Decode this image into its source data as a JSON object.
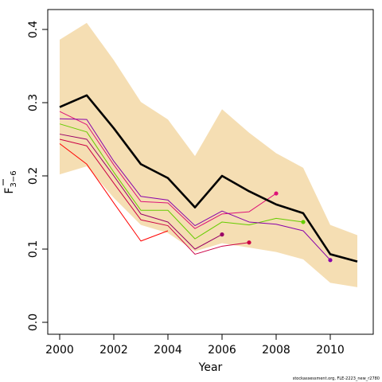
{
  "chart_data": {
    "type": "line",
    "xlabel": "Year",
    "ylabel": {
      "main": "F",
      "subscript": "3−6"
    },
    "xlim": [
      2000,
      2011
    ],
    "ylim": [
      0,
      0.42
    ],
    "x_ticks": [
      "2000",
      "2002",
      "2004",
      "2006",
      "2008",
      "2010"
    ],
    "y_ticks": [
      "0.0",
      "0.1",
      "0.2",
      "0.3",
      "0.4"
    ],
    "credit": "stockassessment.org, FLE-2223_new_r2780",
    "band": {
      "color": "#f5deb3",
      "x": [
        2000,
        2001,
        2002,
        2003,
        2004,
        2005,
        2006,
        2007,
        2008,
        2009,
        2010,
        2011
      ],
      "lower": [
        0.202,
        0.213,
        0.17,
        0.133,
        0.122,
        0.097,
        0.108,
        0.102,
        0.096,
        0.086,
        0.054,
        0.048
      ],
      "upper": [
        0.386,
        0.409,
        0.358,
        0.301,
        0.277,
        0.227,
        0.291,
        0.259,
        0.231,
        0.211,
        0.133,
        0.119
      ]
    },
    "series": [
      {
        "color": "#000000",
        "width": 2.6,
        "end_marker": false,
        "x": [
          2000,
          2001,
          2002,
          2003,
          2004,
          2005,
          2006,
          2007,
          2008,
          2009,
          2010,
          2011
        ],
        "values": [
          0.294,
          0.31,
          0.265,
          0.216,
          0.197,
          0.157,
          0.2,
          0.179,
          0.161,
          0.149,
          0.093,
          0.083
        ]
      },
      {
        "color": "#ff0000",
        "width": 1,
        "end_marker": false,
        "x": [
          2000,
          2001,
          2002,
          2003,
          2004
        ],
        "values": [
          0.244,
          0.216,
          0.163,
          0.111,
          0.125
        ]
      },
      {
        "color": "#cc0044",
        "width": 1,
        "end_marker": true,
        "x": [
          2000,
          2001,
          2002,
          2003,
          2004,
          2005,
          2006,
          2007
        ],
        "values": [
          0.25,
          0.241,
          0.19,
          0.14,
          0.132,
          0.093,
          0.104,
          0.109
        ]
      },
      {
        "color": "#990066",
        "width": 1,
        "end_marker": true,
        "x": [
          2000,
          2001,
          2002,
          2003,
          2004,
          2005,
          2006
        ],
        "values": [
          0.257,
          0.25,
          0.2,
          0.148,
          0.137,
          0.1,
          0.12
        ]
      },
      {
        "color": "#dd1177",
        "width": 1,
        "end_marker": true,
        "x": [
          2000,
          2001,
          2002,
          2003,
          2004,
          2005,
          2006,
          2007,
          2008
        ],
        "values": [
          0.288,
          0.27,
          0.215,
          0.165,
          0.163,
          0.128,
          0.148,
          0.151,
          0.176
        ]
      },
      {
        "color": "#66cc00",
        "width": 1,
        "end_marker": true,
        "x": [
          2000,
          2001,
          2002,
          2003,
          2004,
          2005,
          2006,
          2007,
          2008,
          2009
        ],
        "values": [
          0.271,
          0.26,
          0.205,
          0.153,
          0.153,
          0.114,
          0.137,
          0.133,
          0.142,
          0.137
        ]
      },
      {
        "color": "#8800aa",
        "width": 1,
        "end_marker": true,
        "x": [
          2000,
          2001,
          2002,
          2003,
          2004,
          2005,
          2006,
          2007,
          2008,
          2009,
          2010
        ],
        "values": [
          0.278,
          0.277,
          0.22,
          0.172,
          0.167,
          0.132,
          0.152,
          0.137,
          0.134,
          0.125,
          0.085
        ]
      }
    ]
  }
}
